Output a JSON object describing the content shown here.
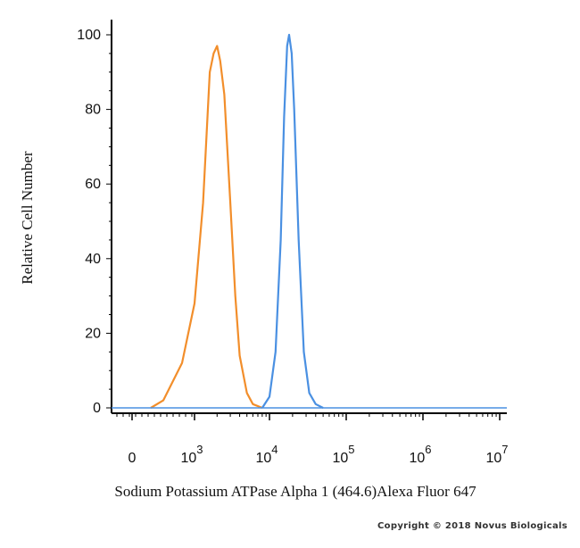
{
  "chart_data": {
    "type": "line",
    "xlabel": "Sodium Potassium ATPase Alpha 1 (464.6)Alexa Fluor 647",
    "ylabel": "Relative Cell Number",
    "x_scale": "biexponential",
    "xlim": [
      -300,
      10000000
    ],
    "ylim": [
      0,
      100
    ],
    "x_ticks": [
      {
        "base": "0",
        "exp": ""
      },
      {
        "base": "10",
        "exp": "3"
      },
      {
        "base": "10",
        "exp": "4"
      },
      {
        "base": "10",
        "exp": "5"
      },
      {
        "base": "10",
        "exp": "6"
      },
      {
        "base": "10",
        "exp": "7"
      }
    ],
    "y_ticks": [
      "0",
      "20",
      "40",
      "60",
      "80",
      "100"
    ],
    "grid": false,
    "series": [
      {
        "color": "#f28e2b",
        "x": [
          300,
          500,
          800,
          1000,
          1300,
          1600,
          1800,
          2000,
          2200,
          2500,
          3000,
          3500,
          4000,
          5000,
          6000,
          8000
        ],
        "y": [
          0,
          2,
          12,
          28,
          55,
          90,
          95,
          97,
          93,
          84,
          55,
          30,
          14,
          4,
          1,
          0
        ]
      },
      {
        "color": "#4a90e2",
        "x": [
          8000,
          10000,
          12000,
          14000,
          15500,
          17000,
          18000,
          19500,
          21000,
          24000,
          28000,
          33000,
          40000,
          50000
        ],
        "y": [
          0,
          3,
          15,
          45,
          78,
          97,
          100,
          95,
          80,
          45,
          15,
          4,
          1,
          0
        ]
      }
    ]
  },
  "copyright": "Copyright © 2018 Novus Biologicals"
}
